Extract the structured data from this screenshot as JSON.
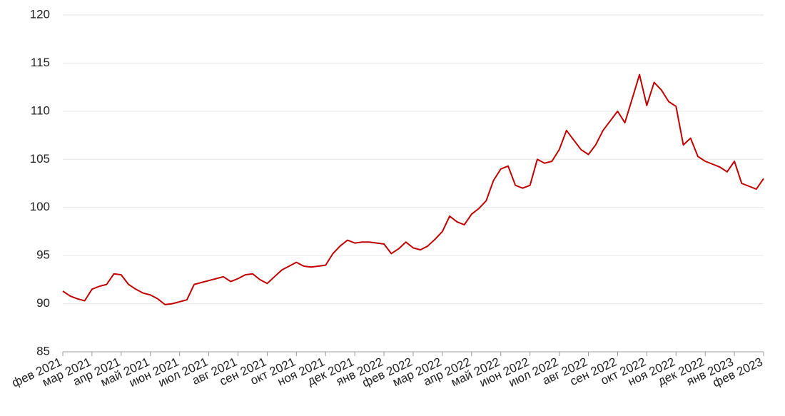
{
  "chart_data": {
    "type": "line",
    "categories": [
      "фев 2021",
      null,
      null,
      null,
      "мар 2021",
      null,
      null,
      null,
      "апр 2021",
      null,
      null,
      null,
      "май 2021",
      null,
      null,
      null,
      "июн 2021",
      null,
      null,
      null,
      "июл 2021",
      null,
      null,
      null,
      "авг 2021",
      null,
      null,
      null,
      "сен 2021",
      null,
      null,
      null,
      "окт 2021",
      null,
      null,
      null,
      "ноя 2021",
      null,
      null,
      null,
      "дек 2021",
      null,
      null,
      null,
      "янв 2022",
      null,
      null,
      null,
      "фев 2022",
      null,
      null,
      null,
      "мар 2022",
      null,
      null,
      null,
      "апр 2022",
      null,
      null,
      null,
      "май 2022",
      null,
      null,
      null,
      "июн 2022",
      null,
      null,
      null,
      "июл 2022",
      null,
      null,
      null,
      "авг 2022",
      null,
      null,
      null,
      "сен 2022",
      null,
      null,
      null,
      "окт 2022",
      null,
      null,
      null,
      "ноя 2022",
      null,
      null,
      null,
      "дек 2022",
      null,
      null,
      null,
      "янв 2023",
      null,
      null,
      null,
      "фев 2023"
    ],
    "values": [
      91.3,
      90.8,
      90.5,
      90.3,
      91.5,
      91.8,
      92.0,
      93.1,
      93.0,
      92.0,
      91.5,
      91.1,
      90.9,
      90.5,
      89.9,
      90.0,
      90.2,
      90.4,
      92.0,
      92.2,
      92.4,
      92.6,
      92.8,
      92.3,
      92.6,
      93.0,
      93.1,
      92.5,
      92.1,
      92.8,
      93.5,
      93.9,
      94.3,
      93.9,
      93.8,
      93.9,
      94.0,
      95.2,
      96.0,
      96.6,
      96.3,
      96.4,
      96.4,
      96.3,
      96.2,
      95.2,
      95.7,
      96.4,
      95.8,
      95.6,
      96.0,
      96.7,
      97.5,
      99.1,
      98.5,
      98.2,
      99.3,
      99.9,
      100.7,
      102.8,
      104.0,
      104.3,
      102.3,
      102.0,
      102.3,
      105.0,
      104.6,
      104.8,
      106.0,
      108.0,
      107.0,
      106.0,
      105.5,
      106.5,
      108.0,
      109.0,
      110.0,
      108.8,
      111.3,
      113.8,
      110.6,
      113.0,
      112.2,
      111.0,
      110.5,
      106.5,
      107.2,
      105.3,
      104.8,
      104.5,
      104.2,
      103.7,
      104.8,
      102.5,
      102.2,
      101.9,
      103.0
    ],
    "color": "#c00000",
    "ylim": [
      85,
      120
    ],
    "yticks": [
      85,
      90,
      95,
      100,
      105,
      110,
      115,
      120
    ],
    "grid": true
  }
}
